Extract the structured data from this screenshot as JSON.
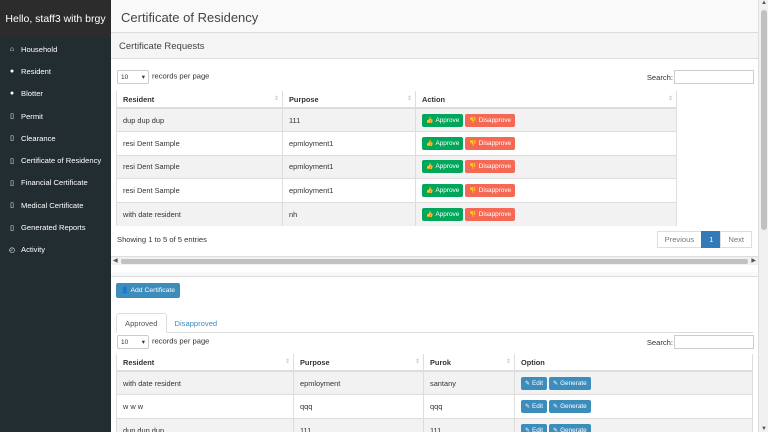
{
  "sidebar": {
    "greeting": "Hello, staff3 with brgy",
    "items": [
      {
        "label": "Household",
        "icon": "home-icon"
      },
      {
        "label": "Resident",
        "icon": "users-icon"
      },
      {
        "label": "Blotter",
        "icon": "users-icon"
      },
      {
        "label": "Permit",
        "icon": "file-icon"
      },
      {
        "label": "Clearance",
        "icon": "file-icon"
      },
      {
        "label": "Certificate of Residency",
        "icon": "file-icon"
      },
      {
        "label": "Financial Certificate",
        "icon": "file-icon"
      },
      {
        "label": "Medical Certificate",
        "icon": "file-icon"
      },
      {
        "label": "Generated Reports",
        "icon": "file-icon"
      },
      {
        "label": "Activity",
        "icon": "history-icon"
      }
    ]
  },
  "page": {
    "title": "Certificate of Residency"
  },
  "requests": {
    "heading": "Certificate Requests",
    "length_value": "10",
    "length_suffix": "records per page",
    "search_label": "Search:",
    "columns": [
      "Resident",
      "Purpose",
      "Action"
    ],
    "rows": [
      {
        "resident": "dup dup dup",
        "purpose": "111"
      },
      {
        "resident": "resi Dent Sample",
        "purpose": "epmloyment1"
      },
      {
        "resident": "resi Dent Sample",
        "purpose": "epmloyment1"
      },
      {
        "resident": "resi Dent Sample",
        "purpose": "epmloyment1"
      },
      {
        "resident": "with date resident",
        "purpose": "nh"
      }
    ],
    "approve_label": "Approve",
    "disapprove_label": "Disapprove",
    "info": "Showing 1 to 5 of 5 entries",
    "pagination": {
      "previous": "Previous",
      "page": "1",
      "next": "Next"
    }
  },
  "certificates": {
    "add_label": "Add Certificate",
    "tabs": [
      "Approved",
      "Disapproved"
    ],
    "length_value": "10",
    "length_suffix": "records per page",
    "search_label": "Search:",
    "columns": [
      "Resident",
      "Purpose",
      "Purok",
      "Option"
    ],
    "rows": [
      {
        "resident": "with date resident",
        "purpose": "epmloyment",
        "purok": "santany"
      },
      {
        "resident": "w w w",
        "purpose": "qqq",
        "purok": "qqq"
      },
      {
        "resident": "dup dup dup",
        "purpose": "111",
        "purok": "111"
      }
    ],
    "edit_label": "Edit",
    "generate_label": "Generate"
  },
  "colors": {
    "sidebar_bg": "#222d32",
    "approve": "#00a65a",
    "disapprove": "#f56954",
    "primary": "#3c8dbc",
    "active_page": "#337ab7"
  }
}
